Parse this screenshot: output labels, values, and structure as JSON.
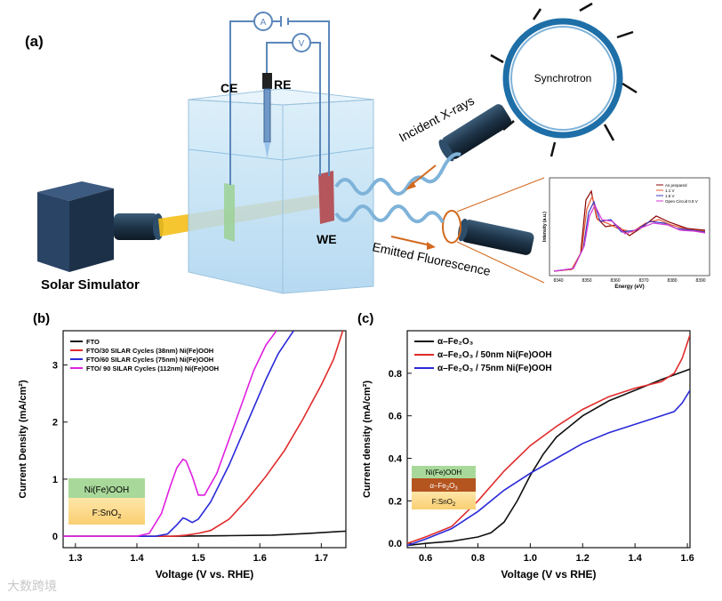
{
  "panel_a": {
    "label": "(a)",
    "ce": "CE",
    "re": "RE",
    "we": "WE",
    "solar": "Solar Simulator",
    "synchrotron": "Synchrotron",
    "incident": "Incident X-rays",
    "emitted": "Emitted Fluorescence",
    "ammeter": "A",
    "voltmeter": "V",
    "inset": {
      "xlabel": "Energy (eV)",
      "ylabel": "Intensity (a.u.)",
      "xticks": [
        "8340",
        "8350",
        "8360",
        "8370",
        "8380",
        "8390"
      ],
      "legend": [
        "As prepared",
        "1.1 V",
        "1.5 V",
        "Open Circuit 0.8 V"
      ],
      "colors": [
        "#8b0000",
        "#e4572e",
        "#3a3ac4",
        "#d63ad6"
      ]
    }
  },
  "panel_b": {
    "label": "(b)",
    "chart_data": {
      "type": "line",
      "xlabel": "Voltage (V vs. RHE)",
      "ylabel": "Current Density (mA/cm²)",
      "xlim": [
        1.28,
        1.74
      ],
      "ylim": [
        -0.2,
        3.6
      ],
      "xticks": [
        1.3,
        1.4,
        1.5,
        1.6,
        1.7
      ],
      "yticks": [
        0,
        1,
        2,
        3
      ],
      "legend_position": "top-left",
      "series": [
        {
          "name": "FTO",
          "color": "#111111",
          "x": [
            1.28,
            1.45,
            1.55,
            1.62,
            1.68,
            1.74
          ],
          "y": [
            0,
            0,
            0.01,
            0.02,
            0.05,
            0.09
          ]
        },
        {
          "name": "FTO/30 SILAR Cycles (38nm) Ni(Fe)OOH",
          "color": "#e02a2a",
          "x": [
            1.28,
            1.46,
            1.48,
            1.5,
            1.52,
            1.55,
            1.58,
            1.61,
            1.64,
            1.67,
            1.7,
            1.72,
            1.735
          ],
          "y": [
            0,
            0,
            0.02,
            0.05,
            0.1,
            0.3,
            0.65,
            1.05,
            1.5,
            2.05,
            2.65,
            3.1,
            3.6
          ]
        },
        {
          "name": "FTO/60 SILAR Cycles (75nm) Ni(Fe)OOH",
          "color": "#2a2ad8",
          "x": [
            1.28,
            1.43,
            1.45,
            1.465,
            1.475,
            1.48,
            1.49,
            1.5,
            1.52,
            1.55,
            1.58,
            1.61,
            1.63,
            1.655
          ],
          "y": [
            0,
            0,
            0.04,
            0.2,
            0.32,
            0.3,
            0.24,
            0.3,
            0.6,
            1.25,
            2.0,
            2.75,
            3.2,
            3.6
          ]
        },
        {
          "name": "FTO/ 90 SILAR Cycles (112nm) Ni(Fe)OOH",
          "color": "#e020e0",
          "x": [
            1.28,
            1.4,
            1.42,
            1.44,
            1.455,
            1.465,
            1.475,
            1.48,
            1.49,
            1.5,
            1.51,
            1.53,
            1.55,
            1.57,
            1.59,
            1.61,
            1.627
          ],
          "y": [
            0,
            0,
            0.05,
            0.4,
            0.9,
            1.2,
            1.35,
            1.32,
            1.05,
            0.72,
            0.72,
            1.1,
            1.7,
            2.3,
            2.9,
            3.35,
            3.6
          ]
        }
      ]
    },
    "stack": {
      "top": "Ni(Fe)OOH",
      "bottom": "F:SnO",
      "bottom_sub": "2"
    }
  },
  "panel_c": {
    "label": "(c)",
    "chart_data": {
      "type": "line",
      "xlabel": "Voltage (V vs RHE)",
      "ylabel": "Current density (mA/cm²)",
      "xlim": [
        0.53,
        1.61
      ],
      "ylim": [
        -0.02,
        1.0
      ],
      "xticks": [
        0.6,
        0.8,
        1.0,
        1.2,
        1.4,
        1.6
      ],
      "yticks": [
        0.0,
        0.2,
        0.4,
        0.6,
        0.8
      ],
      "legend_position": "top-left",
      "series": [
        {
          "name": "α–Fe₂O₃",
          "color": "#111111",
          "x": [
            0.53,
            0.6,
            0.7,
            0.8,
            0.85,
            0.9,
            0.95,
            1.0,
            1.05,
            1.1,
            1.2,
            1.3,
            1.4,
            1.5,
            1.61
          ],
          "y": [
            -0.01,
            0.0,
            0.01,
            0.03,
            0.05,
            0.1,
            0.2,
            0.32,
            0.42,
            0.5,
            0.6,
            0.67,
            0.72,
            0.77,
            0.82
          ]
        },
        {
          "name": "α–Fe₂O₃ / 50nm Ni(Fe)OOH",
          "color": "#e02a2a",
          "x": [
            0.53,
            0.6,
            0.7,
            0.8,
            0.9,
            1.0,
            1.1,
            1.2,
            1.3,
            1.4,
            1.5,
            1.55,
            1.58,
            1.61
          ],
          "y": [
            0.0,
            0.03,
            0.08,
            0.2,
            0.34,
            0.46,
            0.55,
            0.63,
            0.69,
            0.73,
            0.76,
            0.8,
            0.87,
            0.98
          ]
        },
        {
          "name": "α–Fe₂O₃ / 75nm Ni(Fe)OOH",
          "color": "#2a2ad8",
          "x": [
            0.53,
            0.6,
            0.7,
            0.8,
            0.9,
            1.0,
            1.1,
            1.2,
            1.3,
            1.4,
            1.5,
            1.55,
            1.58,
            1.61
          ],
          "y": [
            -0.01,
            0.02,
            0.07,
            0.15,
            0.25,
            0.33,
            0.4,
            0.47,
            0.52,
            0.56,
            0.6,
            0.62,
            0.66,
            0.72
          ]
        }
      ]
    },
    "stack": {
      "top": "Ni(Fe)OOH",
      "mid": "α–Fe",
      "mid_sub": "2",
      "mid_rest": "O",
      "mid_sub2": "3",
      "bottom": "F:SnO",
      "bottom_sub": "2"
    }
  },
  "watermark": "大数跨境"
}
